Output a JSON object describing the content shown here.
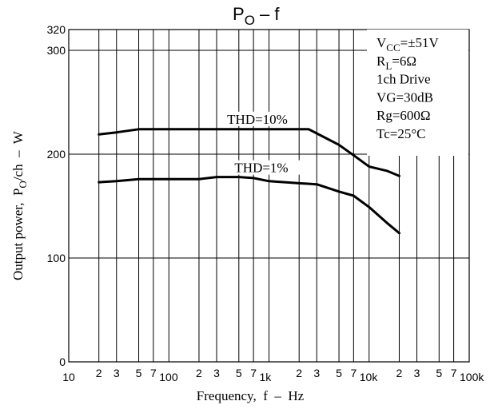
{
  "chart_data": {
    "type": "line",
    "title_main": "P",
    "title_sub": "O",
    "title_rest": " – f",
    "xlabel": "Frequency,  f  –  Hz",
    "ylabel_main": "Output power,  P",
    "ylabel_sub": "O",
    "ylabel_rest": "/ch  –  W",
    "x_scale": "log",
    "xlim": [
      10,
      100000
    ],
    "ylim": [
      0,
      320
    ],
    "grid": true,
    "y_ticks": [
      {
        "value": 0,
        "label": "0"
      },
      {
        "value": 100,
        "label": "100"
      },
      {
        "value": 200,
        "label": "200"
      },
      {
        "value": 300,
        "label": "300"
      },
      {
        "value": 320,
        "label": "320"
      }
    ],
    "x_minor_ticks": [
      {
        "value": 20,
        "label": "2"
      },
      {
        "value": 30,
        "label": "3"
      },
      {
        "value": 50,
        "label": "5"
      },
      {
        "value": 70,
        "label": "7"
      },
      {
        "value": 200,
        "label": "2"
      },
      {
        "value": 300,
        "label": "3"
      },
      {
        "value": 500,
        "label": "5"
      },
      {
        "value": 700,
        "label": "7"
      },
      {
        "value": 2000,
        "label": "2"
      },
      {
        "value": 3000,
        "label": "3"
      },
      {
        "value": 5000,
        "label": "5"
      },
      {
        "value": 7000,
        "label": "7"
      },
      {
        "value": 20000,
        "label": "2"
      },
      {
        "value": 30000,
        "label": "3"
      },
      {
        "value": 50000,
        "label": "5"
      },
      {
        "value": 70000,
        "label": "7"
      }
    ],
    "x_decade_ticks": [
      {
        "value": 10,
        "label": "10"
      },
      {
        "value": 100,
        "label": "100"
      },
      {
        "value": 1000,
        "label": "1k"
      },
      {
        "value": 10000,
        "label": "10k"
      },
      {
        "value": 100000,
        "label": "100k"
      }
    ],
    "series": [
      {
        "name": "THD=10%",
        "x": [
          20,
          30,
          50,
          100,
          200,
          300,
          500,
          1000,
          2000,
          2500,
          3000,
          5000,
          7000,
          10000,
          15000,
          20000
        ],
        "y": [
          219,
          221,
          224,
          224,
          224,
          224,
          224,
          224,
          224,
          224,
          220,
          209,
          199,
          188,
          184,
          179
        ]
      },
      {
        "name": "THD=1%",
        "x": [
          20,
          30,
          50,
          100,
          200,
          300,
          500,
          700,
          1000,
          2000,
          3000,
          5000,
          7000,
          10000,
          15000,
          20000
        ],
        "y": [
          173,
          174,
          176,
          176,
          176,
          178,
          178,
          177,
          174,
          172,
          171,
          164,
          160,
          149,
          134,
          124
        ]
      }
    ],
    "conditions": [
      {
        "main": "V",
        "sub": "CC",
        "rest": "=±51V"
      },
      {
        "main": "R",
        "sub": "L",
        "rest": "=6Ω"
      },
      {
        "main": "1ch Drive",
        "sub": "",
        "rest": ""
      },
      {
        "main": "VG=30dB",
        "sub": "",
        "rest": ""
      },
      {
        "main": "Rg=600Ω",
        "sub": "",
        "rest": ""
      },
      {
        "main": "Tc=25°C",
        "sub": "",
        "rest": ""
      }
    ]
  }
}
